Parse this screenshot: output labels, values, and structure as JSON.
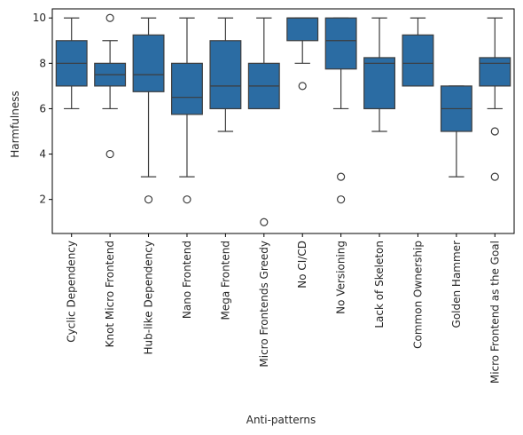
{
  "chart_data": {
    "type": "boxplot",
    "xlabel": "Anti-patterns",
    "ylabel": "Harmfulness",
    "ylim": [
      0.5,
      10.4
    ],
    "yticks": [
      2,
      4,
      6,
      8,
      10
    ],
    "grid": false,
    "color": "#2b6ca3",
    "categories": [
      "Cyclic Dependency",
      "Knot Micro Frontend",
      "Hub-like Dependency",
      "Nano Frontend",
      "Mega Frontend",
      "Micro Frontends Greedy",
      "No CI/CD",
      "No Versioning",
      "Lack of Skeleton",
      "Common Ownership",
      "Golden Hammer",
      "Micro Frontend as the Goal"
    ],
    "boxes": [
      {
        "whislo": 6,
        "q1": 7,
        "med": 8,
        "q3": 9,
        "whishi": 10,
        "fliers": []
      },
      {
        "whislo": 6,
        "q1": 7,
        "med": 7.5,
        "q3": 8,
        "whishi": 9,
        "fliers": [
          10,
          4
        ]
      },
      {
        "whislo": 3,
        "q1": 6.75,
        "med": 7.5,
        "q3": 9.25,
        "whishi": 10,
        "fliers": [
          2
        ]
      },
      {
        "whislo": 3,
        "q1": 5.75,
        "med": 6.5,
        "q3": 8,
        "whishi": 10,
        "fliers": [
          2
        ]
      },
      {
        "whislo": 5,
        "q1": 6,
        "med": 7,
        "q3": 9,
        "whishi": 10,
        "fliers": []
      },
      {
        "whislo": 6,
        "q1": 6,
        "med": 7,
        "q3": 8,
        "whishi": 10,
        "fliers": [
          1
        ]
      },
      {
        "whislo": 8,
        "q1": 9,
        "med": 10,
        "q3": 10,
        "whishi": 10,
        "fliers": [
          7
        ]
      },
      {
        "whislo": 6,
        "q1": 7.75,
        "med": 9,
        "q3": 10,
        "whishi": 10,
        "fliers": [
          3,
          2
        ]
      },
      {
        "whislo": 5,
        "q1": 6,
        "med": 8,
        "q3": 8.25,
        "whishi": 10,
        "fliers": []
      },
      {
        "whislo": 7,
        "q1": 7,
        "med": 8,
        "q3": 9.25,
        "whishi": 10,
        "fliers": []
      },
      {
        "whislo": 3,
        "q1": 5,
        "med": 6,
        "q3": 7,
        "whishi": 7,
        "fliers": []
      },
      {
        "whislo": 6,
        "q1": 7,
        "med": 8,
        "q3": 8.25,
        "whishi": 10,
        "fliers": [
          5,
          3
        ]
      }
    ]
  }
}
